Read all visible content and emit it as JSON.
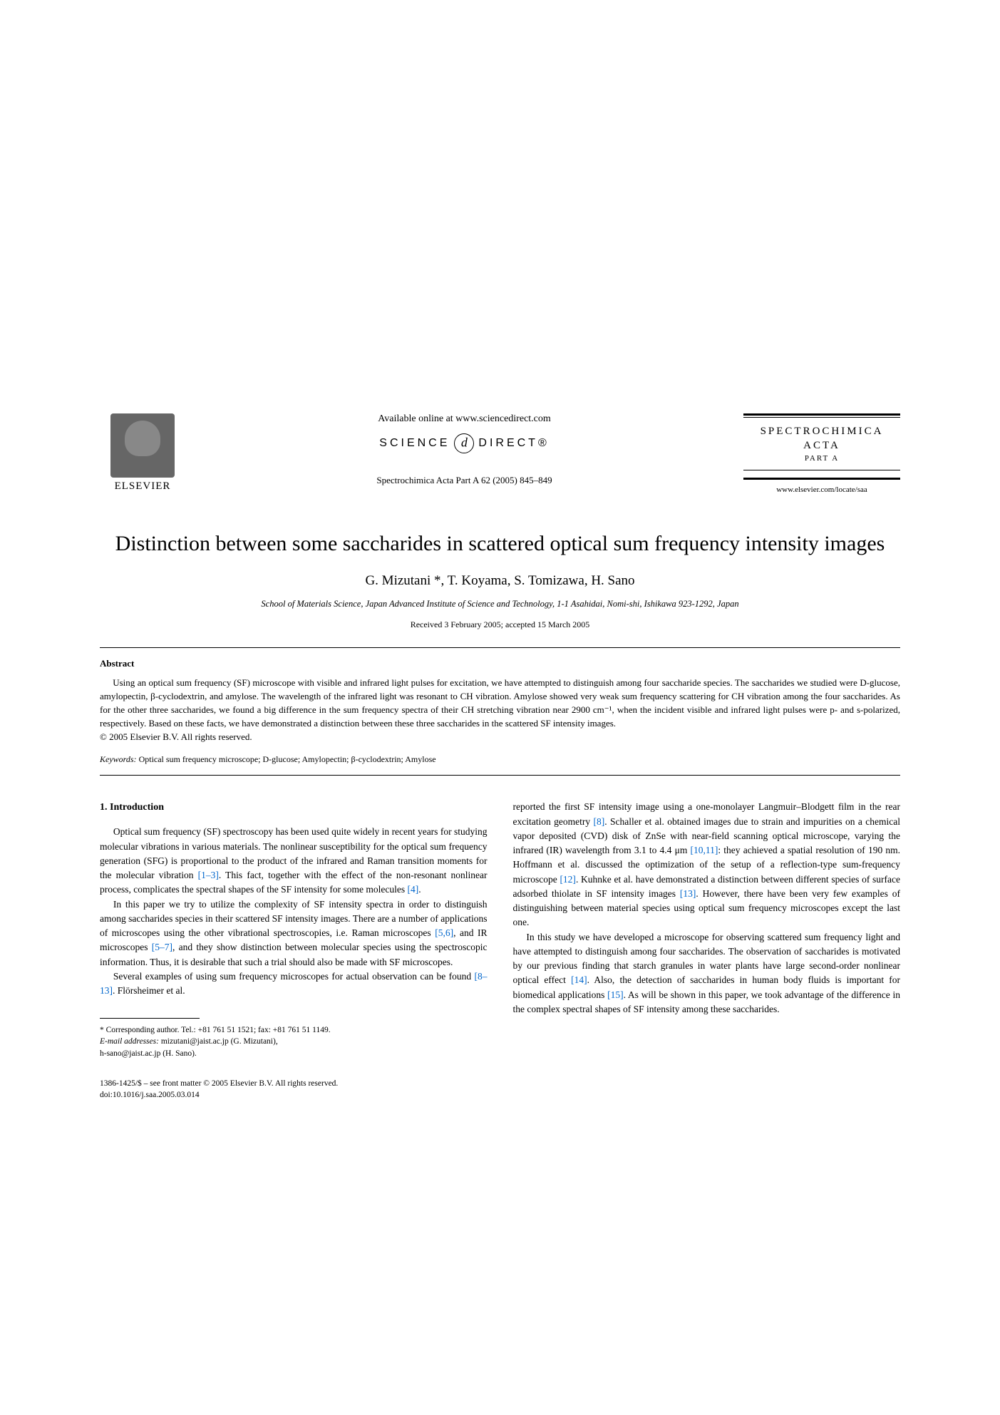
{
  "header": {
    "elsevier_label": "ELSEVIER",
    "available_online": "Available online at www.sciencedirect.com",
    "sd_prefix": "SCIENCE",
    "sd_suffix": "DIRECT®",
    "journal_ref": "Spectrochimica Acta Part A 62 (2005) 845–849",
    "journal_name_line1": "SPECTROCHIMICA",
    "journal_name_line2": "ACTA",
    "journal_part": "PART A",
    "journal_url": "www.elsevier.com/locate/saa"
  },
  "title": "Distinction between some saccharides in scattered optical sum frequency intensity images",
  "authors": "G. Mizutani *, T. Koyama, S. Tomizawa, H. Sano",
  "affiliation": "School of Materials Science, Japan Advanced Institute of Science and Technology, 1-1 Asahidai, Nomi-shi, Ishikawa 923-1292, Japan",
  "dates": "Received 3 February 2005; accepted 15 March 2005",
  "abstract_label": "Abstract",
  "abstract_body": "Using an optical sum frequency (SF) microscope with visible and infrared light pulses for excitation, we have attempted to distinguish among four saccharide species. The saccharides we studied were D-glucose, amylopectin, β-cyclodextrin, and amylose. The wavelength of the infrared light was resonant to CH vibration. Amylose showed very weak sum frequency scattering for CH vibration among the four saccharides. As for the other three saccharides, we found a big difference in the sum frequency spectra of their CH stretching vibration near 2900 cm⁻¹, when the incident visible and infrared light pulses were p- and s-polarized, respectively. Based on these facts, we have demonstrated a distinction between these three saccharides in the scattered SF intensity images.",
  "copyright": "© 2005 Elsevier B.V. All rights reserved.",
  "keywords_label": "Keywords:",
  "keywords_text": " Optical sum frequency microscope; D-glucose; Amylopectin; β-cyclodextrin; Amylose",
  "section1_head": "1. Introduction",
  "col1": {
    "p1": "Optical sum frequency (SF) spectroscopy has been used quite widely in recent years for studying molecular vibrations in various materials. The nonlinear susceptibility for the optical sum frequency generation (SFG) is proportional to the product of the infrared and Raman transition moments for the molecular vibration ",
    "p1_ref": "[1–3]",
    "p1_tail": ". This fact, together with the effect of the non-resonant nonlinear process, complicates the spectral shapes of the SF intensity for some molecules ",
    "p1_ref2": "[4]",
    "p1_tail2": ".",
    "p2": "In this paper we try to utilize the complexity of SF intensity spectra in order to distinguish among saccharides species in their scattered SF intensity images. There are a number of applications of microscopes using the other vibrational spectroscopies, i.e. Raman microscopes ",
    "p2_ref": "[5,6]",
    "p2_mid": ", and IR microscopes ",
    "p2_ref2": "[5–7]",
    "p2_tail": ", and they show distinction between molecular species using the spectroscopic information. Thus, it is desirable that such a trial should also be made with SF microscopes.",
    "p3": "Several examples of using sum frequency microscopes for actual observation can be found ",
    "p3_ref": "[8–13]",
    "p3_tail": ". Flörsheimer et al."
  },
  "col2": {
    "p1": "reported the first SF intensity image using a one-monolayer Langmuir–Blodgett film in the rear excitation geometry ",
    "p1_ref": "[8]",
    "p1_mid": ". Schaller et al. obtained images due to strain and impurities on a chemical vapor deposited (CVD) disk of ZnSe with near-field scanning optical microscope, varying the infrared (IR) wavelength from 3.1 to 4.4 μm ",
    "p1_ref2": "[10,11]",
    "p1_mid2": ": they achieved a spatial resolution of 190 nm. Hoffmann et al. discussed the optimization of the setup of a reflection-type sum-frequency microscope ",
    "p1_ref3": "[12]",
    "p1_mid3": ". Kuhnke et al. have demonstrated a distinction between different species of surface adsorbed thiolate in SF intensity images ",
    "p1_ref4": "[13]",
    "p1_tail": ". However, there have been very few examples of distinguishing between material species using optical sum frequency microscopes except the last one.",
    "p2": "In this study we have developed a microscope for observing scattered sum frequency light and have attempted to distinguish among four saccharides. The observation of saccharides is motivated by our previous finding that starch granules in water plants have large second-order nonlinear optical effect ",
    "p2_ref": "[14]",
    "p2_mid": ". Also, the detection of saccharides in human body fluids is important for biomedical applications ",
    "p2_ref2": "[15]",
    "p2_tail": ". As will be shown in this paper, we took advantage of the difference in the complex spectral shapes of SF intensity among these saccharides."
  },
  "footnotes": {
    "corr": "* Corresponding author. Tel.: +81 761 51 1521; fax: +81 761 51 1149.",
    "email_label": "E-mail addresses:",
    "email1": " mizutani@jaist.ac.jp (G. Mizutani),",
    "email2": "h-sano@jaist.ac.jp (H. Sano)."
  },
  "doi": {
    "line1": "1386-1425/$ – see front matter © 2005 Elsevier B.V. All rights reserved.",
    "line2": "doi:10.1016/j.saa.2005.03.014"
  }
}
